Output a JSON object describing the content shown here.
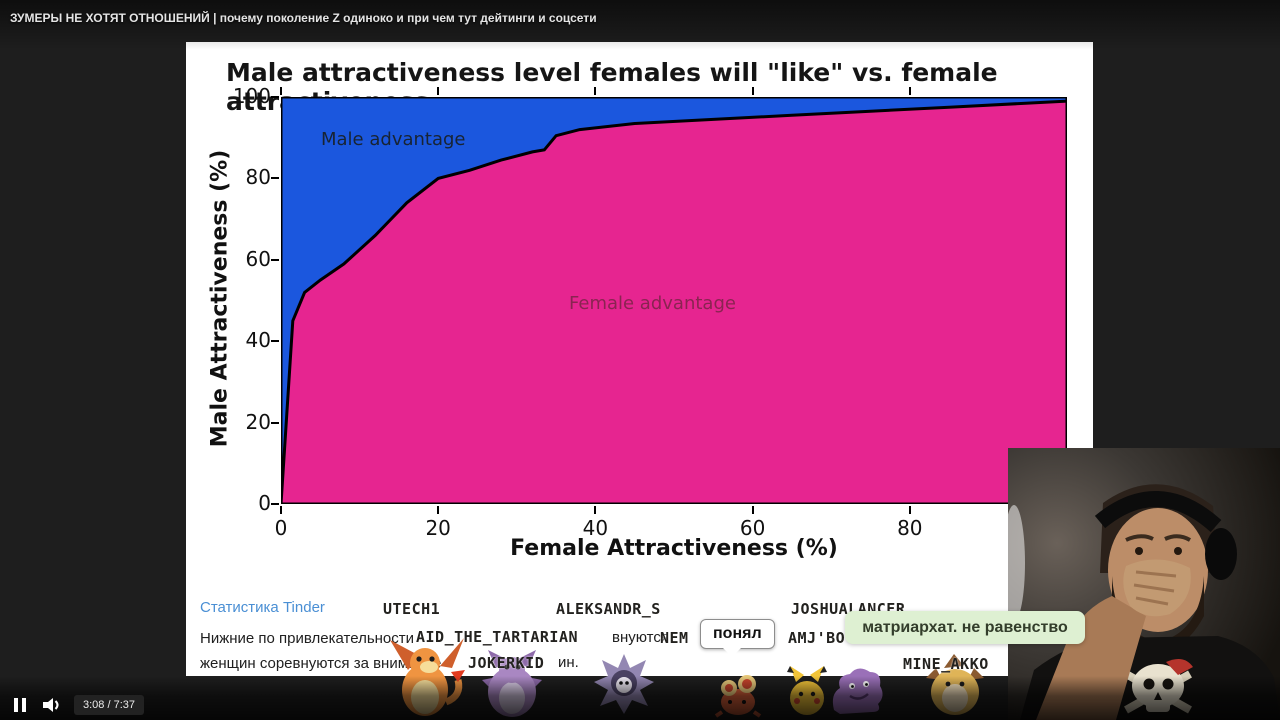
{
  "player": {
    "video_title": "ЗУМЕРЫ НЕ ХОТЯТ ОТНОШЕНИЙ | почему поколение Z одиноко и при чем тут дейтинги и соцсети",
    "time_display": "3:08 / 7:37"
  },
  "chart_data": {
    "type": "area",
    "title": "Male attractiveness level females will \"like\" vs. female attractiveness",
    "xlabel": "Female Attractiveness (%)",
    "ylabel": "Male Attractiveness (%)",
    "xlim": [
      0,
      100
    ],
    "ylim": [
      0,
      100
    ],
    "x_ticks": [
      0,
      20,
      40,
      60,
      80
    ],
    "y_ticks": [
      0,
      20,
      40,
      60,
      80,
      100
    ],
    "grid": false,
    "legend": "none",
    "regions": [
      {
        "label": "Male advantage",
        "color": "#1b57de",
        "label_color": "#182433"
      },
      {
        "label": "Female advantage",
        "color": "#e62590",
        "label_color": "#8a2451"
      }
    ],
    "boundary_curve": {
      "x": [
        0,
        1.5,
        3,
        5,
        8,
        12,
        16,
        20,
        24,
        28,
        32,
        33.5,
        35,
        38,
        45,
        55,
        65,
        75,
        85,
        100
      ],
      "y": [
        0,
        45,
        52,
        55,
        59,
        66,
        74,
        80,
        82,
        84.5,
        86.5,
        87,
        90.5,
        92,
        93.5,
        94.5,
        95.5,
        96.5,
        97.5,
        99
      ]
    }
  },
  "article": {
    "source_link": "Статистика Tinder",
    "paragraph_line1": "Нижние по привлекательности",
    "paragraph_fragment1": "внуются",
    "paragraph_line2": "женщин соревнуются за внимание",
    "paragraph_fragment2": "ин."
  },
  "overlays": {
    "usernames": [
      "UTECH1",
      "ALEKSANDR_S",
      "JOSHUALANCER",
      "AID_THE_TARTARIAN",
      "NEM",
      "AMJ'BO",
      "JOKERKID",
      "MINE_AKKO"
    ],
    "speech_bubble_text": "понял",
    "chat_message": "матриархат. не равенство",
    "chat_box_color": "#def0d2"
  },
  "sprites": [
    "charizard",
    "nidoking",
    "cloyster",
    "paras",
    "pikachu",
    "muk",
    "sandslash"
  ]
}
